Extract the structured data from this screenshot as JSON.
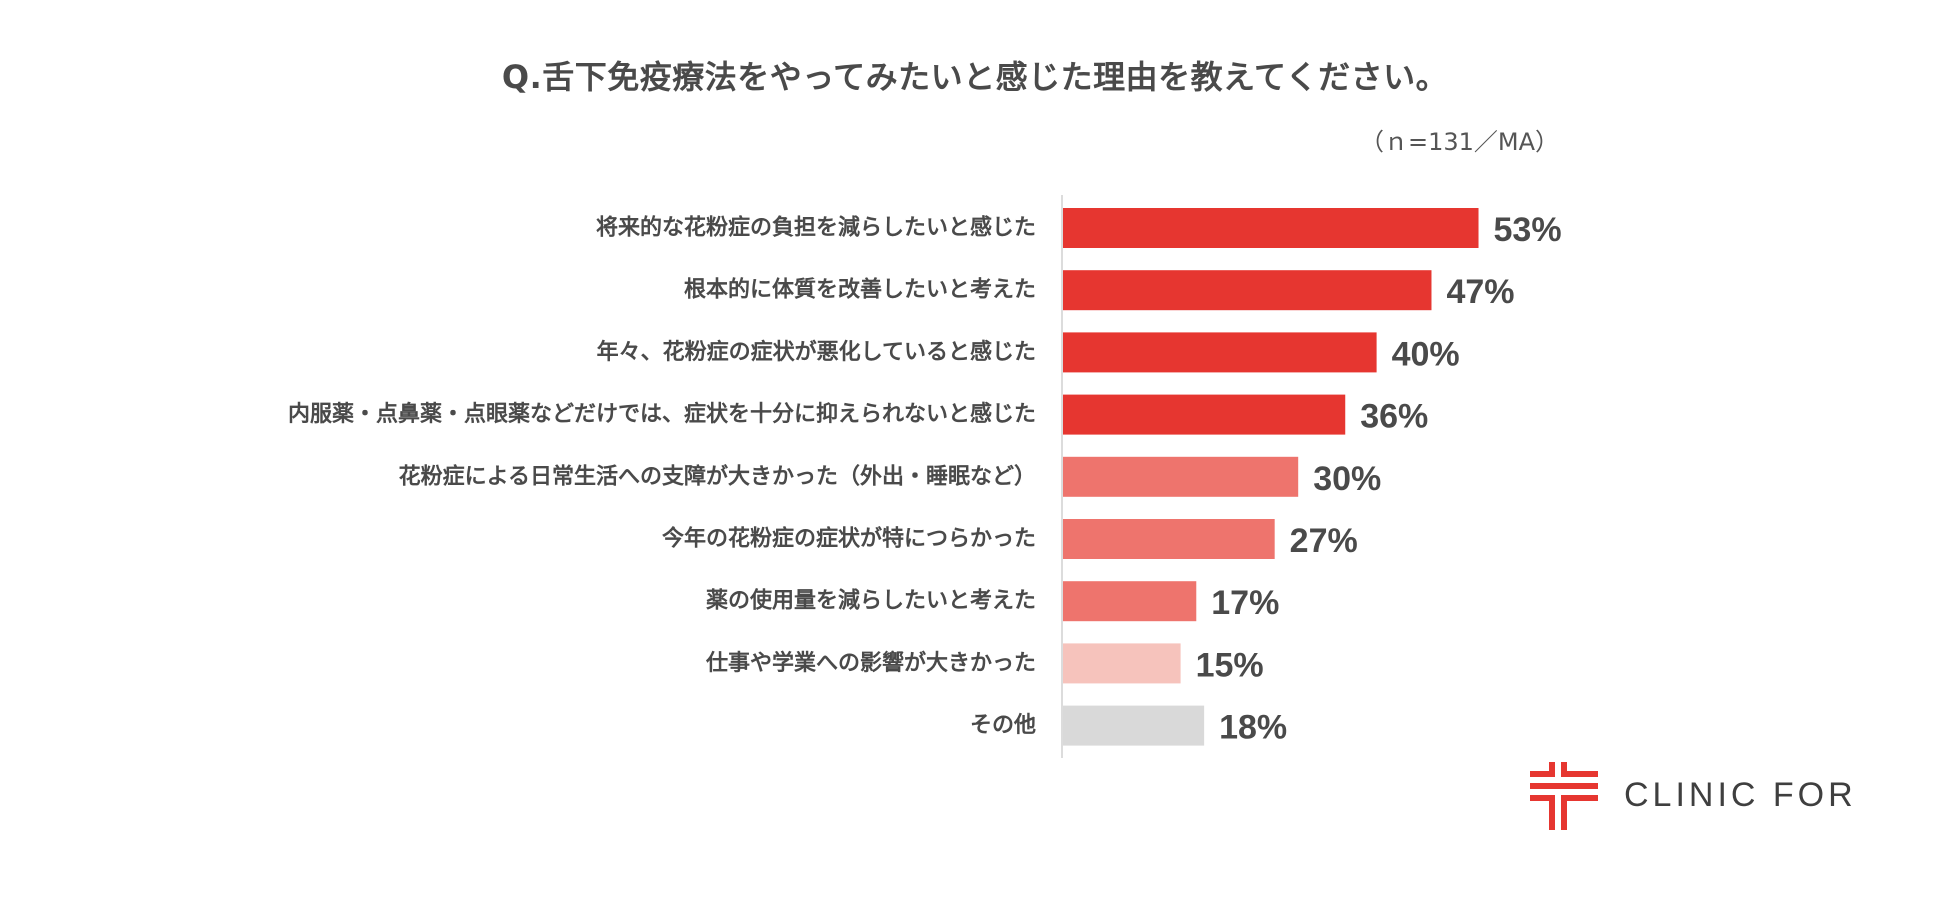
{
  "chart_data": {
    "type": "bar",
    "orientation": "horizontal",
    "title": "Q.舌下免疫療法をやってみたいと感じた理由を教えてください。",
    "subtitle": "（ｎ=131／MA）",
    "categories": [
      "将来的な花粉症の負担を減らしたいと感じた",
      "根本的に体質を改善したいと考えた",
      "年々、花粉症の症状が悪化していると感じた",
      "内服薬・点鼻薬・点眼薬などだけでは、症状を十分に抑えられないと感じた",
      "花粉症による日常生活への支障が大きかった（外出・睡眠など）",
      "今年の花粉症の症状が特につらかった",
      "薬の使用量を減らしたいと考えた",
      "仕事や学業への影響が大きかった",
      "その他"
    ],
    "values": [
      53,
      47,
      40,
      36,
      30,
      27,
      17,
      15,
      18
    ],
    "value_labels": [
      "53%",
      "47%",
      "40%",
      "36%",
      "30%",
      "27%",
      "17%",
      "15%",
      "18%"
    ],
    "bar_colors": [
      "#e63630",
      "#e63630",
      "#e63630",
      "#e63630",
      "#ee746d",
      "#ee746d",
      "#ee746d",
      "#f6c3bc",
      "#d9d9d9"
    ],
    "xlim": [
      0,
      60
    ],
    "grid": false,
    "legend": "none"
  },
  "brand": {
    "name": "CLINIC FOR",
    "accent": "#e63630"
  }
}
